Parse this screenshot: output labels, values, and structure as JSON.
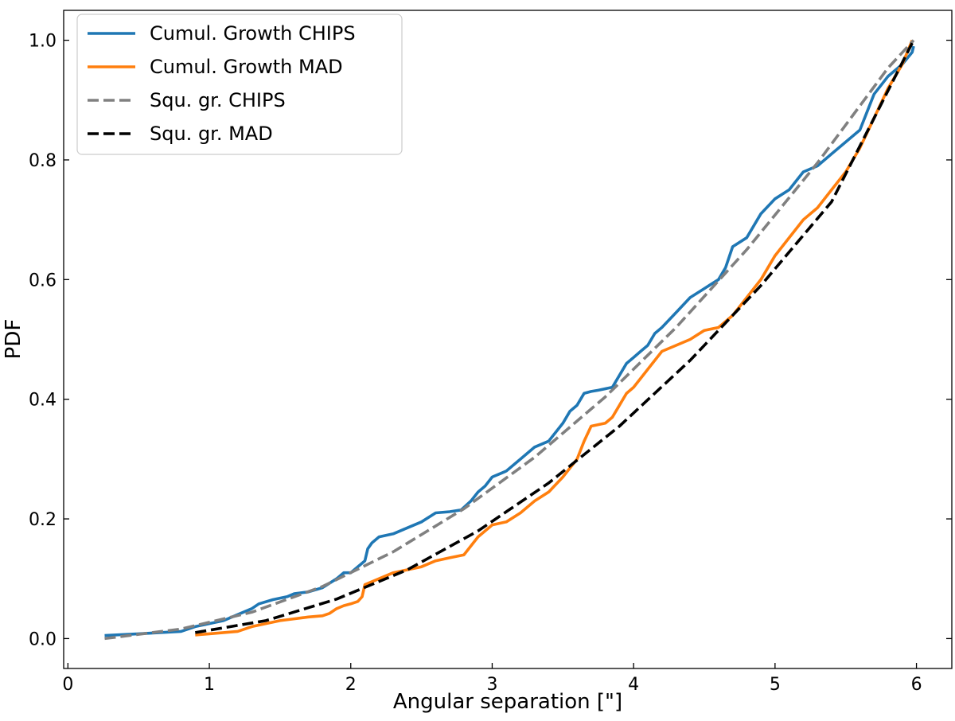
{
  "chart_data": {
    "type": "line",
    "title": "",
    "xlabel": "Angular separation [\"]",
    "ylabel": "PDF",
    "xlim": [
      -0.03,
      6.25
    ],
    "ylim": [
      -0.05,
      1.05
    ],
    "xticks": [
      0,
      1,
      2,
      3,
      4,
      5,
      6
    ],
    "xtick_labels": [
      "0",
      "1",
      "2",
      "3",
      "4",
      "5",
      "6"
    ],
    "yticks": [
      0.0,
      0.2,
      0.4,
      0.6,
      0.8,
      1.0
    ],
    "ytick_labels": [
      "0.0",
      "0.2",
      "0.4",
      "0.6",
      "0.8",
      "1.0"
    ],
    "grid": false,
    "legend_position": "top-left",
    "series": [
      {
        "name": "Cumul. Growth CHIPS",
        "color": "#1f77b4",
        "style": "solid",
        "x": [
          0.26,
          0.5,
          0.8,
          0.9,
          1.0,
          1.1,
          1.2,
          1.3,
          1.35,
          1.45,
          1.55,
          1.6,
          1.7,
          1.8,
          1.9,
          1.95,
          2.0,
          2.05,
          2.1,
          2.12,
          2.15,
          2.2,
          2.3,
          2.4,
          2.5,
          2.6,
          2.7,
          2.78,
          2.85,
          2.9,
          2.95,
          3.0,
          3.05,
          3.1,
          3.15,
          3.2,
          3.3,
          3.4,
          3.5,
          3.55,
          3.6,
          3.65,
          3.7,
          3.75,
          3.85,
          3.9,
          3.95,
          4.0,
          4.05,
          4.1,
          4.15,
          4.2,
          4.3,
          4.4,
          4.5,
          4.6,
          4.65,
          4.7,
          4.8,
          4.9,
          5.0,
          5.1,
          5.2,
          5.3,
          5.4,
          5.5,
          5.6,
          5.65,
          5.7,
          5.8,
          5.9,
          5.97,
          5.98
        ],
        "y": [
          0.005,
          0.008,
          0.012,
          0.02,
          0.025,
          0.03,
          0.04,
          0.05,
          0.058,
          0.065,
          0.07,
          0.075,
          0.078,
          0.085,
          0.1,
          0.11,
          0.11,
          0.12,
          0.13,
          0.15,
          0.16,
          0.17,
          0.175,
          0.185,
          0.195,
          0.21,
          0.212,
          0.215,
          0.23,
          0.245,
          0.255,
          0.27,
          0.275,
          0.28,
          0.29,
          0.3,
          0.32,
          0.33,
          0.36,
          0.38,
          0.39,
          0.41,
          0.413,
          0.415,
          0.42,
          0.44,
          0.46,
          0.47,
          0.48,
          0.49,
          0.51,
          0.52,
          0.545,
          0.57,
          0.585,
          0.6,
          0.62,
          0.655,
          0.67,
          0.71,
          0.735,
          0.75,
          0.78,
          0.79,
          0.81,
          0.83,
          0.85,
          0.88,
          0.91,
          0.94,
          0.96,
          0.98,
          0.99
        ]
      },
      {
        "name": "Cumul. Growth MAD",
        "color": "#ff7f0e",
        "style": "solid",
        "x": [
          0.9,
          1.0,
          1.2,
          1.3,
          1.4,
          1.5,
          1.6,
          1.7,
          1.8,
          1.85,
          1.9,
          1.95,
          2.0,
          2.05,
          2.08,
          2.1,
          2.2,
          2.3,
          2.4,
          2.5,
          2.6,
          2.7,
          2.8,
          2.9,
          2.95,
          3.0,
          3.1,
          3.2,
          3.3,
          3.4,
          3.5,
          3.6,
          3.65,
          3.7,
          3.8,
          3.85,
          3.9,
          3.95,
          4.0,
          4.1,
          4.2,
          4.3,
          4.4,
          4.5,
          4.6,
          4.7,
          4.8,
          4.9,
          5.0,
          5.1,
          5.2,
          5.3,
          5.4,
          5.5,
          5.6,
          5.7,
          5.8,
          5.9,
          5.97
        ],
        "y": [
          0.006,
          0.008,
          0.012,
          0.02,
          0.025,
          0.03,
          0.033,
          0.036,
          0.038,
          0.042,
          0.05,
          0.055,
          0.058,
          0.062,
          0.07,
          0.09,
          0.1,
          0.11,
          0.115,
          0.12,
          0.13,
          0.135,
          0.14,
          0.17,
          0.18,
          0.19,
          0.195,
          0.21,
          0.23,
          0.245,
          0.27,
          0.3,
          0.33,
          0.355,
          0.36,
          0.37,
          0.39,
          0.41,
          0.42,
          0.45,
          0.48,
          0.49,
          0.5,
          0.515,
          0.52,
          0.54,
          0.57,
          0.6,
          0.64,
          0.67,
          0.7,
          0.72,
          0.75,
          0.78,
          0.82,
          0.87,
          0.92,
          0.96,
          1.0
        ]
      },
      {
        "name": "Squ. gr. CHIPS",
        "color": "#808080",
        "style": "dashed",
        "x": [
          0.26,
          0.8,
          1.3,
          1.8,
          2.3,
          2.8,
          3.3,
          3.8,
          4.3,
          4.8,
          5.3,
          5.8,
          5.98
        ],
        "y": [
          0.0,
          0.016,
          0.044,
          0.087,
          0.145,
          0.217,
          0.303,
          0.404,
          0.52,
          0.65,
          0.795,
          0.954,
          1.0
        ]
      },
      {
        "name": "Squ. gr. MAD",
        "color": "#000000",
        "style": "dashed",
        "x": [
          0.9,
          1.4,
          1.9,
          2.4,
          2.9,
          3.4,
          3.9,
          4.4,
          4.9,
          5.4,
          5.98
        ],
        "y": [
          0.01,
          0.03,
          0.066,
          0.115,
          0.18,
          0.26,
          0.355,
          0.465,
          0.59,
          0.73,
          1.0
        ]
      }
    ]
  }
}
